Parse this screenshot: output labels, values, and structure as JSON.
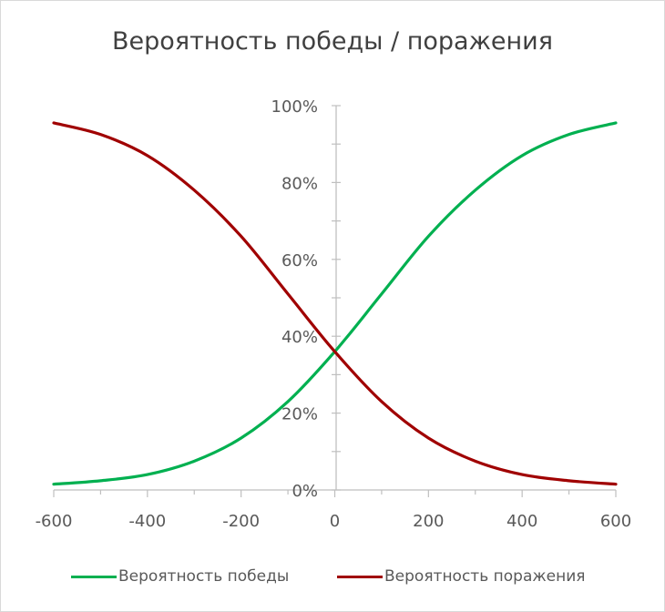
{
  "chart_data": {
    "type": "line",
    "title": "Вероятность победы / поражения",
    "xlim": [
      -600,
      600
    ],
    "ylim": [
      0,
      100
    ],
    "x_ticks": [
      "-600",
      "-400",
      "-200",
      "0",
      "200",
      "400",
      "600"
    ],
    "y_ticks": [
      "0%",
      "20%",
      "40%",
      "60%",
      "80%",
      "100%"
    ],
    "grid": false,
    "legend_position": "bottom",
    "series": [
      {
        "name": "Вероятность победы",
        "color": "#00b050",
        "x": [
          -600,
          -500,
          -400,
          -300,
          -200,
          -100,
          0,
          100,
          200,
          300,
          400,
          500,
          600
        ],
        "y": [
          1.5,
          2.4,
          4.0,
          7.5,
          13.5,
          23.0,
          36.0,
          51.0,
          66.0,
          78.0,
          87.0,
          92.5,
          95.5
        ]
      },
      {
        "name": "Вероятность поражения",
        "color": "#a00000",
        "x": [
          -600,
          -500,
          -400,
          -300,
          -200,
          -100,
          0,
          100,
          200,
          300,
          400,
          500,
          600
        ],
        "y": [
          95.5,
          92.5,
          87.0,
          78.0,
          66.0,
          51.0,
          36.0,
          23.0,
          13.5,
          7.5,
          4.0,
          2.4,
          1.5
        ]
      }
    ]
  }
}
